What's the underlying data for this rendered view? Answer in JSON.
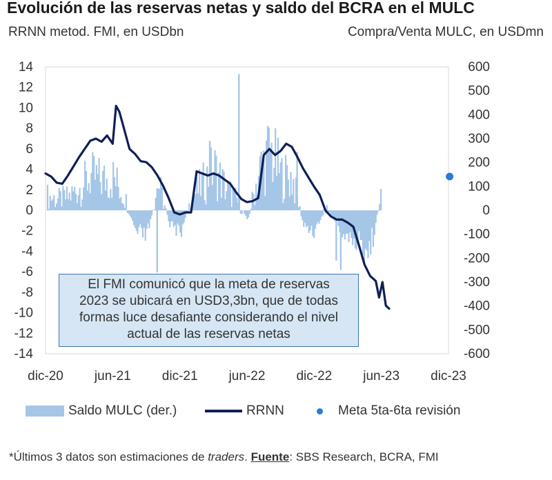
{
  "title": "Evolución de las reservas netas y saldo del BCRA en el MULC",
  "subtitle_left": "RRNN metod. FMI, en USDbn",
  "subtitle_right": "Compra/Venta MULC, en USDmn",
  "annotation": {
    "lines": [
      "El FMI comunicó que la meta de reservas",
      "2023 se ubicará en USD3,3bn, que de todas",
      "formas luce desafiante considerando el nivel",
      "actual de las reservas netas"
    ]
  },
  "legend": {
    "mulc": "Saldo MULC (der.)",
    "rrnn": "RRNN",
    "meta": "Meta 5ta-6ta revisión"
  },
  "footnote": {
    "prefix": "*Últimos 3 datos son estimaciones de ",
    "italic": "traders",
    "middle": ". ",
    "bold": "Fuente",
    "suffix": ": SBS Research, BCRA, FMI"
  },
  "colors": {
    "rrnn": "#0e1f56",
    "mulc": "#a6c6e8",
    "meta": "#2b7bd6",
    "annotation_bg": "#d6e6f4",
    "annotation_border": "#3a73b0"
  },
  "chart_data": {
    "type": "bar+line",
    "x_tick_labels": [
      "dic-20",
      "jun-21",
      "dic-21",
      "jun-22",
      "dic-22",
      "jun-23",
      "dic-23"
    ],
    "x_range_months": [
      0,
      36
    ],
    "left_axis": {
      "label": "RRNN metod. FMI, en USDbn",
      "ylim": [
        -14,
        14
      ],
      "ticks": [
        14,
        12,
        10,
        8,
        6,
        4,
        2,
        0,
        -2,
        -4,
        -6,
        -8,
        -10,
        -12,
        -14
      ]
    },
    "right_axis": {
      "label": "Compra/Venta MULC, en USDmn",
      "ylim": [
        -600,
        600
      ],
      "ticks": [
        600,
        500,
        400,
        300,
        200,
        100,
        0,
        -100,
        -200,
        -300,
        -400,
        -500,
        -600
      ]
    },
    "series": [
      {
        "name": "RRNN",
        "axis": "left",
        "x_months": [
          0,
          0.5,
          1,
          1.5,
          2,
          2.5,
          3,
          3.5,
          4,
          4.5,
          5,
          5.5,
          6,
          6.3,
          6.6,
          7,
          7.5,
          8,
          8.5,
          9,
          9.5,
          10,
          10.5,
          11,
          11.5,
          12,
          12.5,
          13,
          13.5,
          14,
          14.5,
          15,
          15.5,
          16,
          16.5,
          17,
          17.5,
          18,
          18.5,
          19,
          19.5,
          20,
          20.5,
          21,
          21.5,
          22,
          22.5,
          23,
          23.5,
          24,
          24.5,
          25,
          25.5,
          26,
          26.5,
          27,
          27.5,
          28,
          28.5,
          29,
          29.5,
          29.8,
          30.1,
          30.4,
          30.7
        ],
        "values": [
          3.6,
          3.3,
          2.7,
          2.6,
          3.4,
          4.3,
          5.2,
          6.0,
          6.8,
          7.0,
          6.7,
          7.3,
          6.5,
          10.2,
          9.6,
          8.0,
          6.0,
          5.5,
          4.8,
          4.7,
          4.2,
          3.4,
          2.4,
          1.2,
          -0.2,
          -0.4,
          -0.2,
          -0.2,
          3.8,
          3.6,
          3.4,
          3.6,
          3.4,
          3.0,
          2.6,
          1.8,
          1.1,
          0.8,
          0.9,
          1.2,
          5.4,
          6.0,
          5.4,
          5.8,
          6.5,
          6.2,
          5.2,
          4.1,
          3.2,
          2.3,
          1.5,
          0.0,
          -0.6,
          -0.9,
          -0.9,
          -1.2,
          -1.6,
          -3.4,
          -5.3,
          -6.4,
          -6.9,
          -8.5,
          -7.0,
          -9.3,
          -9.6
        ]
      },
      {
        "name": "Saldo MULC (der.)",
        "axis": "right",
        "x_months": [
          0,
          1,
          2,
          3,
          4,
          5,
          6,
          7,
          8,
          9,
          10,
          11,
          12,
          13,
          14,
          15,
          16,
          17,
          18,
          19,
          20,
          21,
          22,
          23,
          24,
          25,
          26,
          27,
          28,
          29,
          30
        ],
        "values": [
          60,
          45,
          55,
          95,
          140,
          125,
          135,
          60,
          -95,
          -110,
          120,
          -55,
          -95,
          55,
          110,
          175,
          95,
          45,
          -40,
          160,
          250,
          145,
          135,
          -65,
          -85,
          10,
          -60,
          -120,
          -145,
          -160,
          100
        ],
        "peaks_right_axis": [
          {
            "month": 17.2,
            "value": 570
          },
          {
            "month": 14.6,
            "value": 290
          },
          {
            "month": 22.4,
            "value": 245
          },
          {
            "month": 26.3,
            "value": -250
          },
          {
            "month": 25.9,
            "value": -210
          },
          {
            "month": 9.9,
            "value": -260
          }
        ]
      },
      {
        "name": "Meta 5ta-6ta revisión",
        "axis": "left",
        "type": "point",
        "x_months": [
          36.1
        ],
        "values": [
          3.3
        ]
      }
    ]
  }
}
